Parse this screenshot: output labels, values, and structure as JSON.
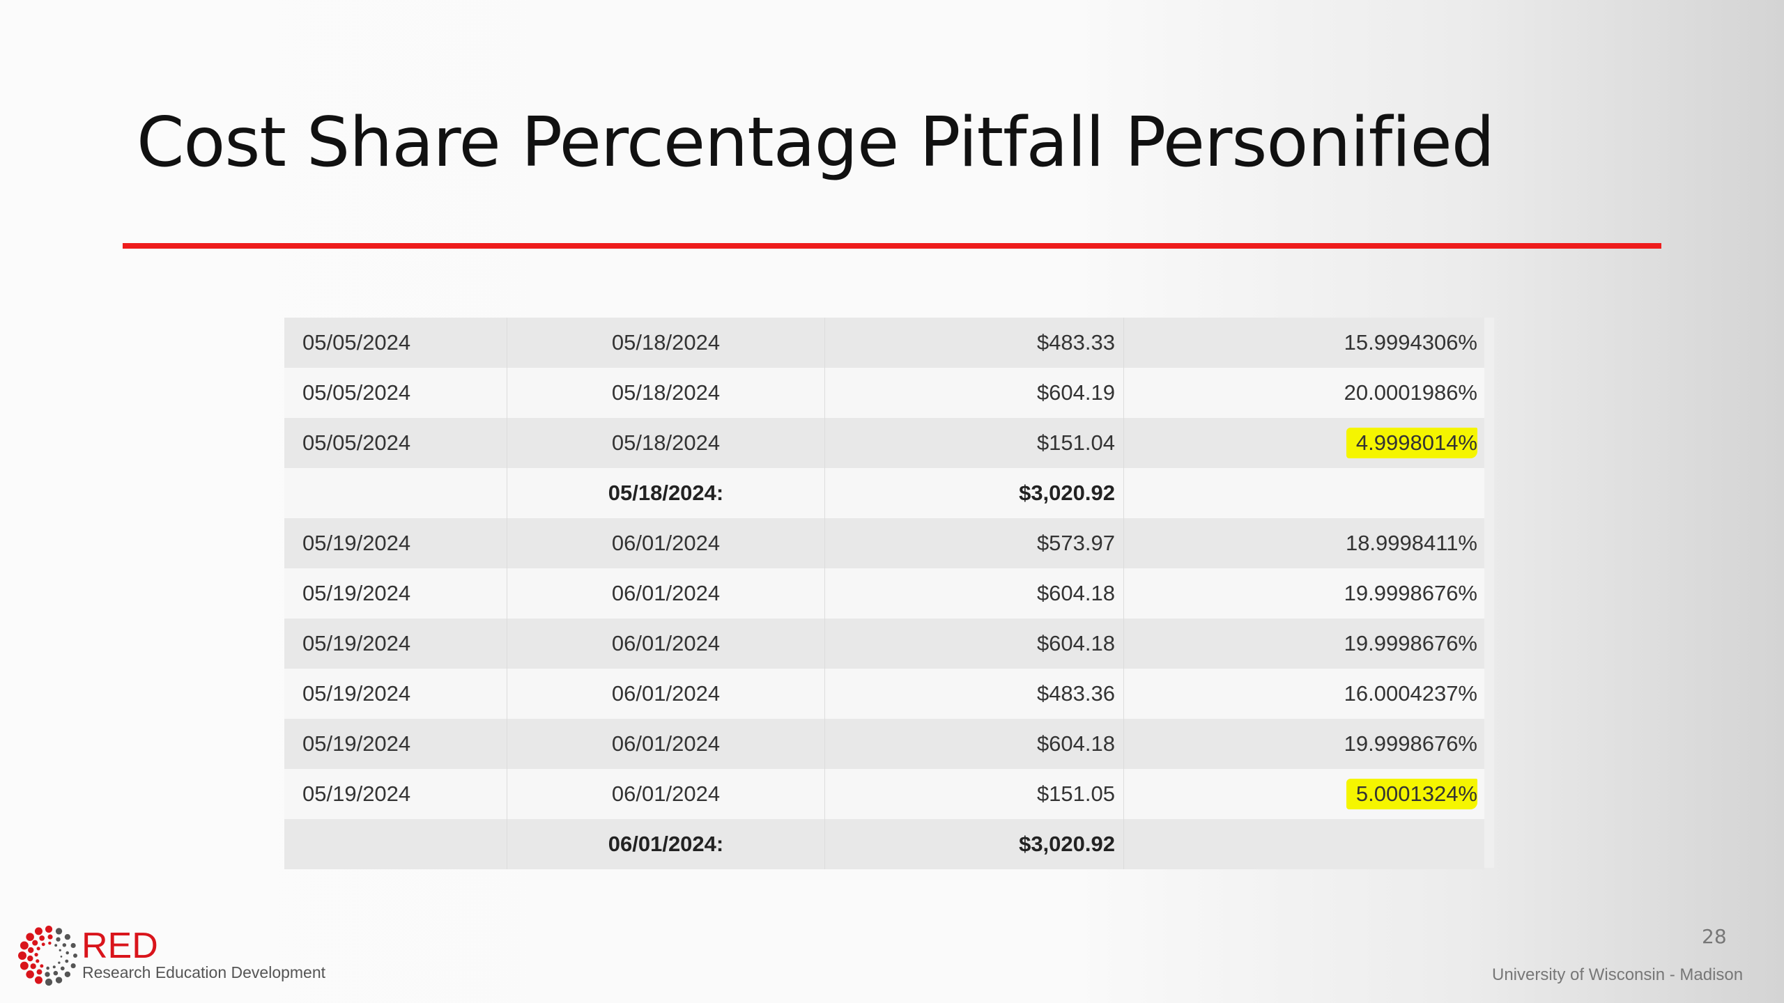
{
  "slide": {
    "title": "Cost Share Percentage Pitfall Personified",
    "page_number": "28",
    "footer": "University of Wisconsin - Madison",
    "logo": {
      "name": "RED",
      "subtitle": "Research Education Development"
    },
    "accent_color": "#ee1c1c",
    "highlight_color": "#f5f500"
  },
  "table": {
    "rows": [
      {
        "start": "05/05/2024",
        "end": "05/18/2024",
        "amount": "$483.33",
        "percent": "15.9994306%",
        "highlight": false,
        "total": false
      },
      {
        "start": "05/05/2024",
        "end": "05/18/2024",
        "amount": "$604.19",
        "percent": "20.0001986%",
        "highlight": false,
        "total": false
      },
      {
        "start": "05/05/2024",
        "end": "05/18/2024",
        "amount": "$151.04",
        "percent": "4.9998014%",
        "highlight": true,
        "total": false
      },
      {
        "start": "",
        "end": "05/18/2024:",
        "amount": "$3,020.92",
        "percent": "",
        "highlight": false,
        "total": true
      },
      {
        "start": "05/19/2024",
        "end": "06/01/2024",
        "amount": "$573.97",
        "percent": "18.9998411%",
        "highlight": false,
        "total": false
      },
      {
        "start": "05/19/2024",
        "end": "06/01/2024",
        "amount": "$604.18",
        "percent": "19.9998676%",
        "highlight": false,
        "total": false
      },
      {
        "start": "05/19/2024",
        "end": "06/01/2024",
        "amount": "$604.18",
        "percent": "19.9998676%",
        "highlight": false,
        "total": false
      },
      {
        "start": "05/19/2024",
        "end": "06/01/2024",
        "amount": "$483.36",
        "percent": "16.0004237%",
        "highlight": false,
        "total": false
      },
      {
        "start": "05/19/2024",
        "end": "06/01/2024",
        "amount": "$604.18",
        "percent": "19.9998676%",
        "highlight": false,
        "total": false
      },
      {
        "start": "05/19/2024",
        "end": "06/01/2024",
        "amount": "$151.05",
        "percent": "5.0001324%",
        "highlight": true,
        "total": false
      },
      {
        "start": "",
        "end": "06/01/2024:",
        "amount": "$3,020.92",
        "percent": "",
        "highlight": false,
        "total": true
      }
    ]
  }
}
